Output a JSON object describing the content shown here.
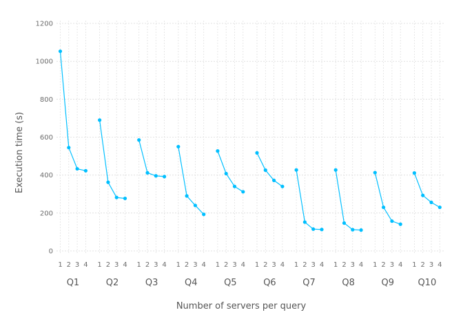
{
  "chart_data": {
    "type": "line",
    "xlabel": "Number of servers per query",
    "ylabel": "Execution time (s)",
    "ylim": [
      0,
      1200
    ],
    "yticks": [
      0,
      200,
      400,
      600,
      800,
      1000,
      1200
    ],
    "grid": true,
    "series_color": "#00BFFF",
    "x": [
      "1",
      "2",
      "3",
      "4"
    ],
    "groups": [
      {
        "name": "Q1",
        "values": [
          1053,
          545,
          433,
          423
        ]
      },
      {
        "name": "Q2",
        "values": [
          690,
          362,
          282,
          277
        ]
      },
      {
        "name": "Q3",
        "values": [
          585,
          412,
          396,
          392
        ]
      },
      {
        "name": "Q4",
        "values": [
          550,
          290,
          240,
          193
        ]
      },
      {
        "name": "Q5",
        "values": [
          527,
          408,
          340,
          312
        ]
      },
      {
        "name": "Q6",
        "values": [
          517,
          426,
          372,
          340
        ]
      },
      {
        "name": "Q7",
        "values": [
          427,
          152,
          115,
          113
        ]
      },
      {
        "name": "Q8",
        "values": [
          427,
          147,
          112,
          110
        ]
      },
      {
        "name": "Q9",
        "values": [
          413,
          230,
          157,
          141
        ]
      },
      {
        "name": "Q10",
        "values": [
          411,
          293,
          256,
          230
        ]
      }
    ]
  }
}
